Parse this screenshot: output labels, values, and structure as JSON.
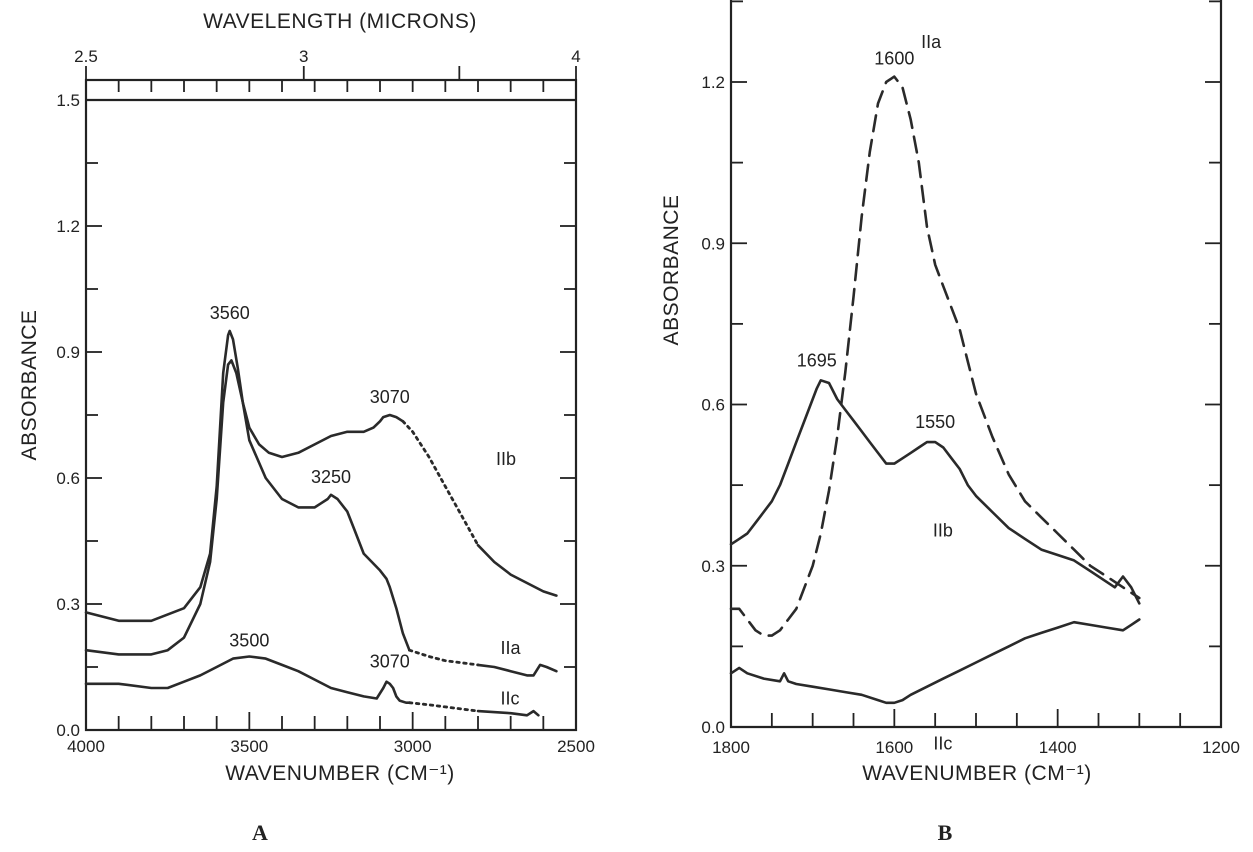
{
  "chart_data": [
    {
      "panel": "A",
      "type": "line",
      "xlabel": "WAVENUMBER (CM⁻¹)",
      "ylabel": "ABSORBANCE",
      "x2label": "WAVELENGTH (MICRONS)",
      "xlim": [
        4000,
        2500
      ],
      "ylim": [
        0,
        1.5
      ],
      "x_ticks": [
        "4000",
        "3500",
        "3000",
        "2500"
      ],
      "y_ticks": [
        "0.0",
        "0.3",
        "0.6",
        "0.9",
        "1.2",
        "1.5"
      ],
      "x2_ticks": [
        "2.5",
        "3",
        "4"
      ],
      "grid": false,
      "series": [
        {
          "name": "IIb",
          "style": "solid",
          "x": [
            4000,
            3900,
            3800,
            3700,
            3650,
            3620,
            3600,
            3580,
            3565,
            3560,
            3550,
            3535,
            3520,
            3500,
            3470,
            3440,
            3400,
            3350,
            3300,
            3250,
            3200,
            3150,
            3120,
            3100,
            3090,
            3070,
            3050,
            3030
          ],
          "y": [
            0.28,
            0.26,
            0.26,
            0.29,
            0.34,
            0.42,
            0.58,
            0.85,
            0.94,
            0.95,
            0.93,
            0.86,
            0.78,
            0.72,
            0.68,
            0.66,
            0.65,
            0.66,
            0.68,
            0.7,
            0.71,
            0.71,
            0.72,
            0.735,
            0.745,
            0.75,
            0.745,
            0.735
          ],
          "dotted_x": [
            3030,
            3000,
            2950,
            2900,
            2850,
            2800
          ],
          "dotted_y": [
            0.735,
            0.71,
            0.65,
            0.58,
            0.51,
            0.44
          ],
          "end_x": [
            2800,
            2750,
            2700,
            2650,
            2600,
            2560
          ],
          "end_y": [
            0.44,
            0.4,
            0.37,
            0.35,
            0.33,
            0.32
          ]
        },
        {
          "name": "IIa",
          "style": "solid",
          "x": [
            4000,
            3900,
            3800,
            3750,
            3700,
            3650,
            3620,
            3600,
            3580,
            3565,
            3555,
            3540,
            3520,
            3500,
            3450,
            3400,
            3350,
            3300,
            3280,
            3260,
            3250,
            3230,
            3200,
            3180,
            3150,
            3100,
            3080,
            3070,
            3050,
            3030,
            3010
          ],
          "y": [
            0.19,
            0.18,
            0.18,
            0.19,
            0.22,
            0.3,
            0.4,
            0.55,
            0.78,
            0.87,
            0.88,
            0.85,
            0.78,
            0.69,
            0.6,
            0.55,
            0.53,
            0.53,
            0.54,
            0.55,
            0.56,
            0.55,
            0.52,
            0.48,
            0.42,
            0.38,
            0.36,
            0.34,
            0.29,
            0.23,
            0.19
          ],
          "dotted_x": [
            3010,
            2950,
            2900,
            2850,
            2800
          ],
          "dotted_y": [
            0.19,
            0.175,
            0.165,
            0.16,
            0.155
          ],
          "end_x": [
            2800,
            2750,
            2700,
            2650,
            2630,
            2610,
            2590,
            2560
          ],
          "end_y": [
            0.155,
            0.15,
            0.14,
            0.13,
            0.13,
            0.155,
            0.15,
            0.14
          ]
        },
        {
          "name": "IIc",
          "style": "solid",
          "x": [
            4000,
            3900,
            3800,
            3750,
            3700,
            3650,
            3600,
            3550,
            3500,
            3450,
            3400,
            3350,
            3300,
            3250,
            3200,
            3150,
            3110,
            3090,
            3080,
            3070,
            3060,
            3050,
            3040,
            3020,
            3010
          ],
          "y": [
            0.11,
            0.11,
            0.1,
            0.1,
            0.115,
            0.13,
            0.15,
            0.17,
            0.175,
            0.17,
            0.155,
            0.14,
            0.12,
            0.1,
            0.09,
            0.08,
            0.075,
            0.1,
            0.115,
            0.11,
            0.1,
            0.08,
            0.07,
            0.065,
            0.065
          ],
          "dotted_x": [
            3010,
            2950,
            2900,
            2850,
            2800
          ],
          "dotted_y": [
            0.065,
            0.06,
            0.055,
            0.05,
            0.045
          ],
          "end_x": [
            2800,
            2700,
            2650,
            2630,
            2615
          ],
          "end_y": [
            0.045,
            0.04,
            0.035,
            0.045,
            0.035
          ]
        }
      ],
      "annotations": [
        {
          "text": "3560",
          "x": 3560,
          "y": 0.95
        },
        {
          "text": "3070",
          "x": 3070,
          "y": 0.75
        },
        {
          "text": "3250",
          "x": 3250,
          "y": 0.56
        },
        {
          "text": "3500",
          "x": 3500,
          "y": 0.175
        },
        {
          "text": "3070",
          "x": 3070,
          "y": 0.115
        },
        {
          "text": "IIb",
          "x": 2800,
          "y": 0.65
        },
        {
          "text": "IIa",
          "x": 2780,
          "y": 0.2
        },
        {
          "text": "IIc",
          "x": 2780,
          "y": 0.08
        }
      ]
    },
    {
      "panel": "B",
      "type": "line",
      "xlabel": "WAVENUMBER (CM⁻¹)",
      "ylabel": "ABSORBANCE",
      "xlim": [
        1800,
        1200
      ],
      "ylim": [
        0,
        1.35
      ],
      "x_ticks": [
        "1800",
        "1600",
        "1400",
        "1200"
      ],
      "y_ticks": [
        "0.0",
        "0.3",
        "0.6",
        "0.9",
        "1.2"
      ],
      "grid": false,
      "series": [
        {
          "name": "IIa",
          "style": "dashed",
          "x": [
            1800,
            1790,
            1780,
            1770,
            1760,
            1750,
            1740,
            1730,
            1720,
            1710,
            1700,
            1690,
            1680,
            1670,
            1660,
            1650,
            1640,
            1630,
            1620,
            1610,
            1600,
            1590,
            1580,
            1570,
            1560,
            1550,
            1540,
            1530,
            1520,
            1510,
            1500,
            1480,
            1460,
            1440,
            1420,
            1400,
            1380,
            1360,
            1340,
            1320,
            1300
          ],
          "y": [
            0.22,
            0.22,
            0.2,
            0.18,
            0.17,
            0.17,
            0.18,
            0.2,
            0.22,
            0.26,
            0.3,
            0.36,
            0.44,
            0.54,
            0.66,
            0.8,
            0.95,
            1.07,
            1.16,
            1.2,
            1.21,
            1.19,
            1.13,
            1.05,
            0.93,
            0.86,
            0.82,
            0.78,
            0.74,
            0.68,
            0.62,
            0.54,
            0.47,
            0.42,
            0.39,
            0.36,
            0.33,
            0.3,
            0.28,
            0.26,
            0.24
          ]
        },
        {
          "name": "IIb",
          "style": "solid",
          "x": [
            1800,
            1790,
            1780,
            1770,
            1760,
            1750,
            1740,
            1730,
            1720,
            1710,
            1700,
            1695,
            1690,
            1680,
            1670,
            1660,
            1650,
            1640,
            1630,
            1620,
            1610,
            1600,
            1590,
            1580,
            1570,
            1560,
            1550,
            1540,
            1530,
            1520,
            1510,
            1500,
            1480,
            1460,
            1440,
            1420,
            1400,
            1380,
            1360,
            1340,
            1330,
            1320,
            1310,
            1300
          ],
          "y": [
            0.34,
            0.35,
            0.36,
            0.38,
            0.4,
            0.42,
            0.45,
            0.49,
            0.53,
            0.57,
            0.61,
            0.63,
            0.645,
            0.64,
            0.61,
            0.59,
            0.57,
            0.55,
            0.53,
            0.51,
            0.49,
            0.49,
            0.5,
            0.51,
            0.52,
            0.53,
            0.53,
            0.52,
            0.5,
            0.48,
            0.45,
            0.43,
            0.4,
            0.37,
            0.35,
            0.33,
            0.32,
            0.31,
            0.29,
            0.27,
            0.26,
            0.28,
            0.26,
            0.23
          ]
        },
        {
          "name": "IIc",
          "style": "solid",
          "x": [
            1800,
            1790,
            1780,
            1760,
            1740,
            1735,
            1730,
            1720,
            1700,
            1680,
            1660,
            1640,
            1620,
            1610,
            1600,
            1590,
            1580,
            1560,
            1540,
            1520,
            1500,
            1480,
            1460,
            1440,
            1420,
            1400,
            1380,
            1360,
            1340,
            1320,
            1310,
            1300
          ],
          "y": [
            0.1,
            0.11,
            0.1,
            0.09,
            0.085,
            0.1,
            0.085,
            0.08,
            0.075,
            0.07,
            0.065,
            0.06,
            0.05,
            0.045,
            0.045,
            0.05,
            0.06,
            0.075,
            0.09,
            0.105,
            0.12,
            0.135,
            0.15,
            0.165,
            0.175,
            0.185,
            0.195,
            0.19,
            0.185,
            0.18,
            0.19,
            0.2
          ]
        }
      ],
      "annotations": [
        {
          "text": "1600",
          "x": 1600,
          "y": 1.21
        },
        {
          "text": "IIa",
          "x": 1555,
          "y": 1.17
        },
        {
          "text": "1695",
          "x": 1695,
          "y": 0.645
        },
        {
          "text": "1550",
          "x": 1550,
          "y": 0.53
        },
        {
          "text": "IIb",
          "x": 1565,
          "y": 0.42
        },
        {
          "text": "IIc",
          "x": 1565,
          "y": 0.01
        }
      ]
    }
  ],
  "panel_labels": [
    "A",
    "B"
  ]
}
